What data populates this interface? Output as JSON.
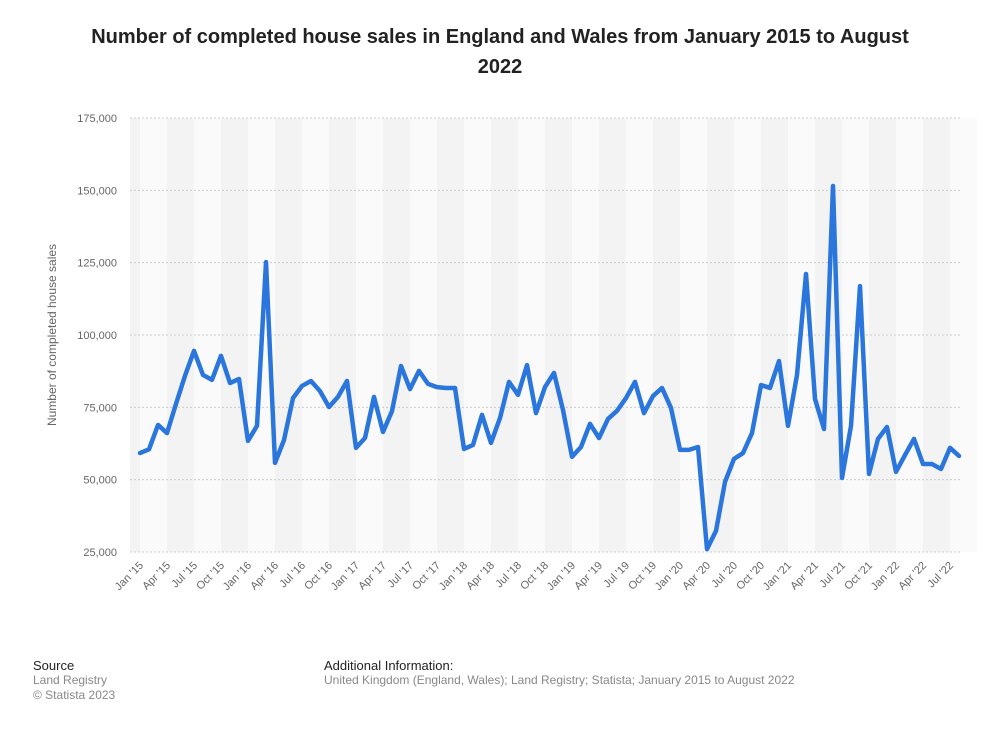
{
  "chart_data": {
    "type": "line",
    "title": "Number of completed house sales in England and Wales from January 2015 to August 2022",
    "xlabel": "",
    "ylabel": "Number of completed house sales",
    "ylim": [
      25000,
      175000
    ],
    "yticks": [
      "25,000",
      "50,000",
      "75,000",
      "100,000",
      "125,000",
      "150,000",
      "175,000"
    ],
    "grid": true,
    "color": "#2a76dd",
    "xtick_labels": [
      "Jan '15",
      "Apr '15",
      "Jul '15",
      "Oct '15",
      "Jan '16",
      "Apr '16",
      "Jul '16",
      "Oct '16",
      "Jan '17",
      "Apr '17",
      "Jul '17",
      "Oct '17",
      "Jan '18",
      "Apr '18",
      "Jul '18",
      "Oct '18",
      "Jan '19",
      "Apr '19",
      "Jul '19",
      "Oct '19",
      "Jan '20",
      "Apr '20",
      "Jul '20",
      "Oct '20",
      "Jan '21",
      "Apr '21",
      "Jul '21",
      "Oct '21",
      "Jan '22",
      "Apr '22",
      "Jul '22"
    ],
    "x_start": "Jan 2015",
    "x_end": "Aug 2022",
    "values": [
      59200,
      60500,
      68900,
      66100,
      76200,
      85900,
      94500,
      86200,
      84500,
      92800,
      83400,
      84800,
      63400,
      68600,
      125200,
      55800,
      63700,
      78200,
      82400,
      84100,
      80600,
      75100,
      78600,
      84100,
      61000,
      64400,
      78600,
      66500,
      73700,
      89300,
      81300,
      87600,
      83100,
      82000,
      81700,
      81700,
      60600,
      62000,
      72400,
      62700,
      71300,
      83800,
      79300,
      89600,
      73000,
      82000,
      86900,
      74100,
      57900,
      61300,
      69300,
      64400,
      71000,
      73800,
      78200,
      83800,
      73000,
      78900,
      81700,
      74800,
      60300,
      60300,
      61300,
      26000,
      32300,
      49200,
      57200,
      59200,
      66100,
      82700,
      81700,
      91000,
      68600,
      86200,
      121100,
      77900,
      67500,
      151500,
      50600,
      68600,
      116900,
      52000,
      64100,
      68200,
      52700,
      58500,
      64100,
      55400,
      55400,
      53700,
      61000,
      58200
    ]
  },
  "footer": {
    "source_label": "Source",
    "source_lines": [
      "Land Registry",
      "© Statista 2023"
    ],
    "info_label": "Additional Information:",
    "info_text": "United Kingdom (England, Wales); Land Registry; Statista; January 2015 to August 2022"
  }
}
